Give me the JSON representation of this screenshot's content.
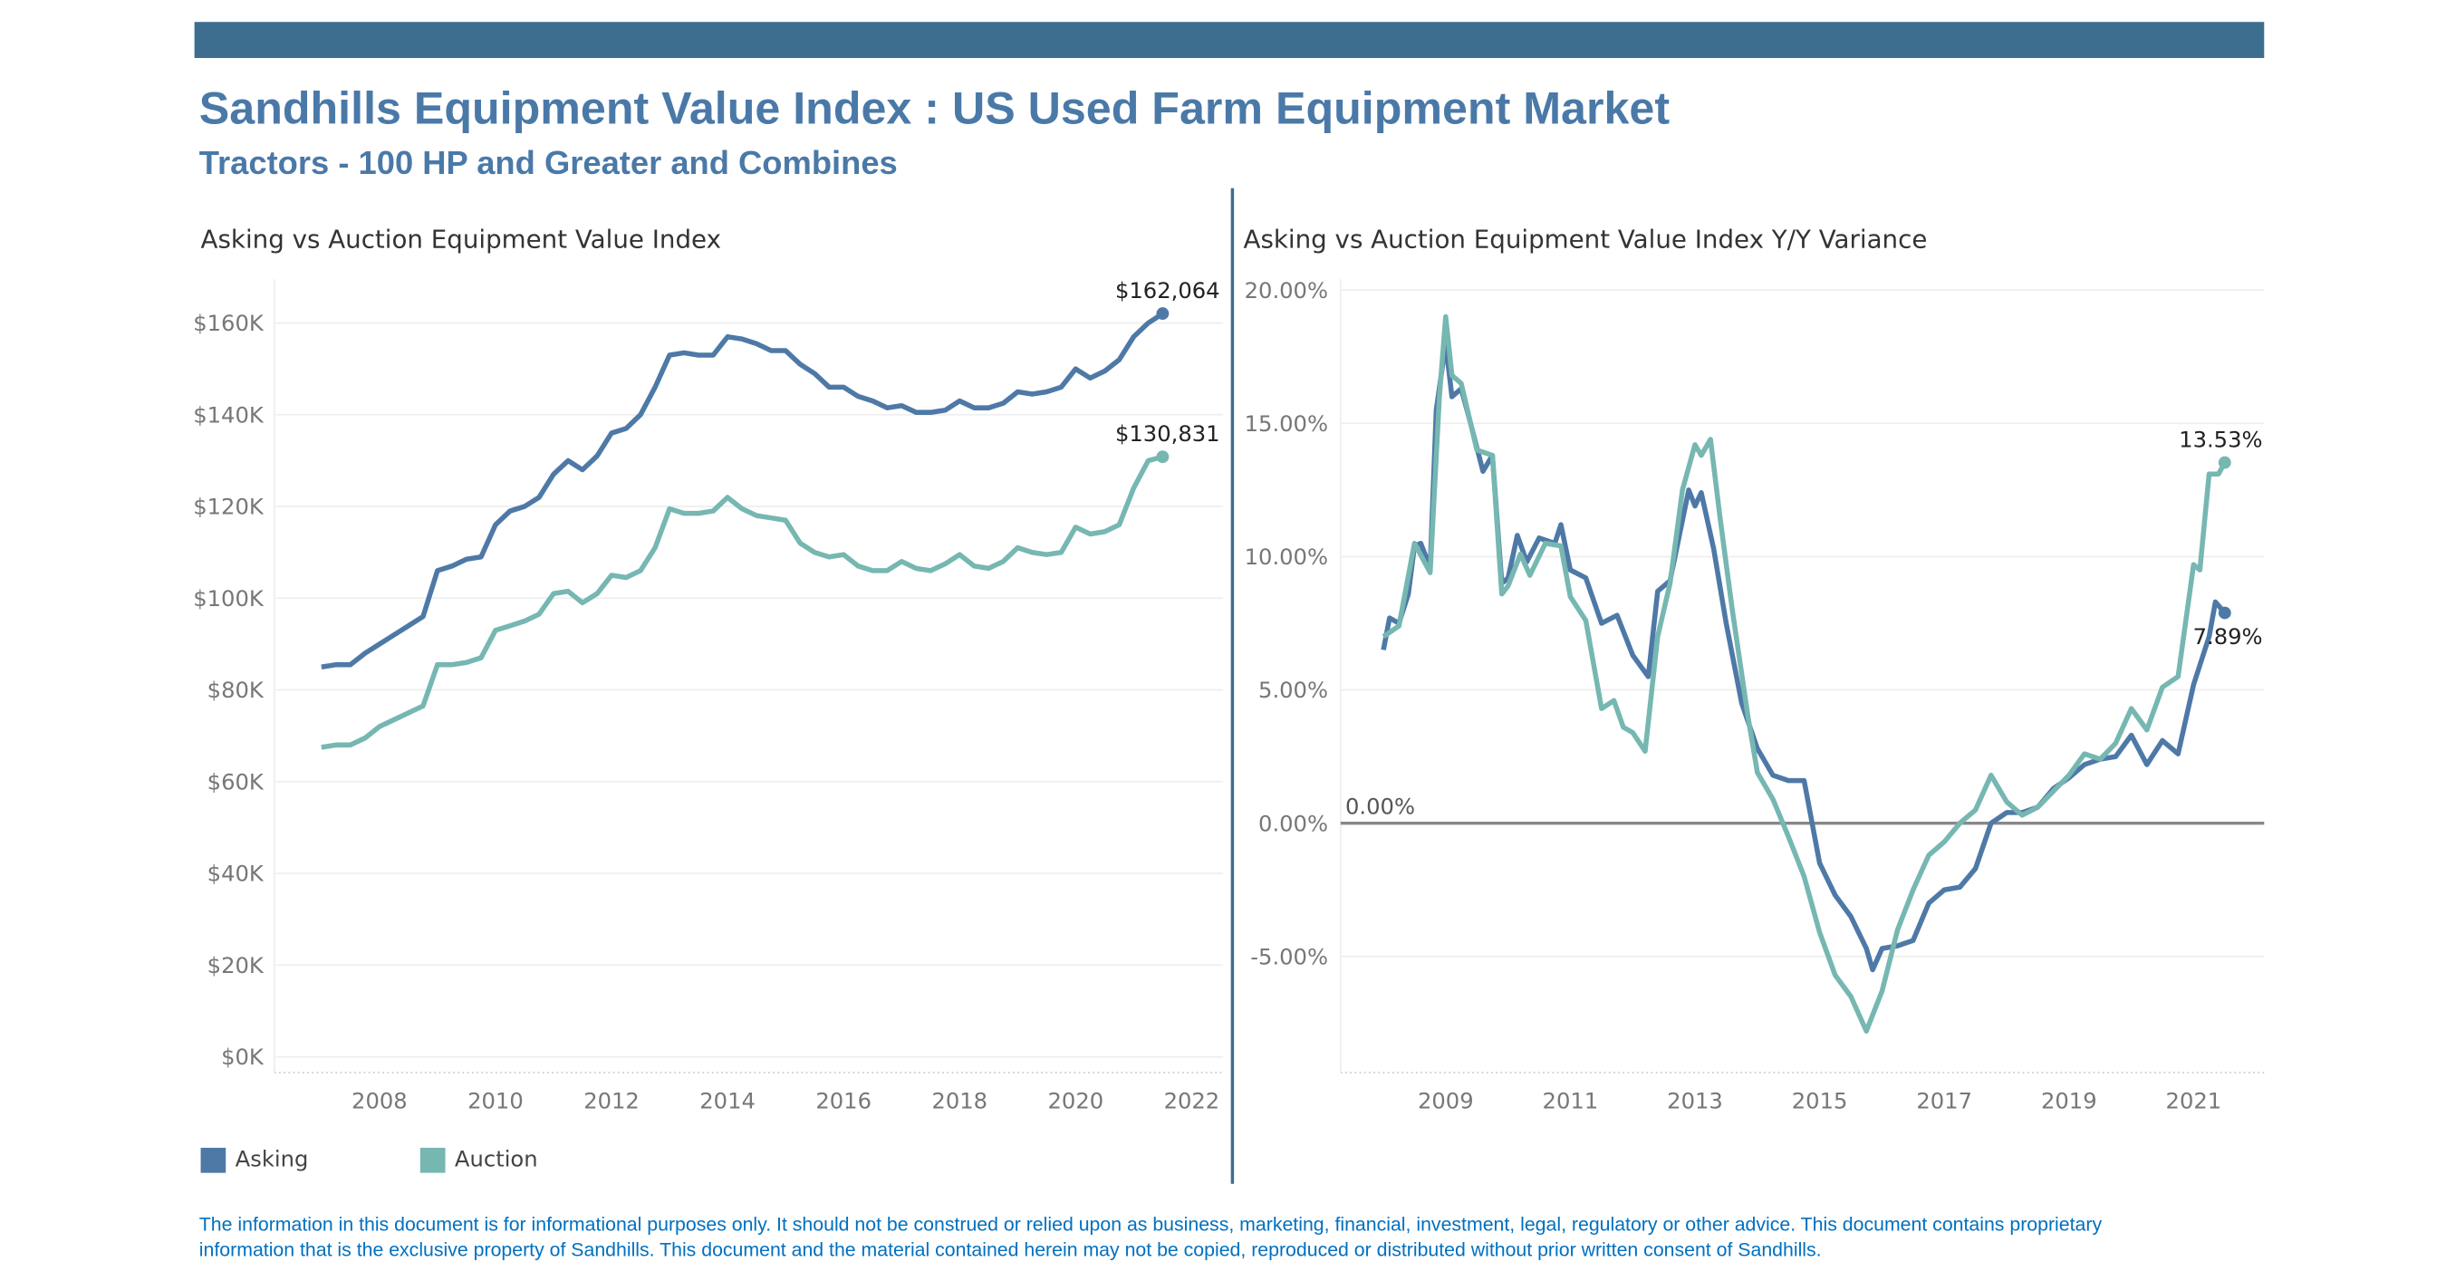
{
  "header": {
    "title": "Sandhills Equipment Value Index : US Used Farm Equipment Market",
    "subtitle": "Tractors - 100 HP and Greater and Combines"
  },
  "colors": {
    "banner": "#3d6e8f",
    "title": "#4a79a8",
    "asking": "#4e79a7",
    "auction": "#76b7b2",
    "footer": "#0070c0"
  },
  "legend": [
    {
      "label": "Asking",
      "color": "#4e79a7"
    },
    {
      "label": "Auction",
      "color": "#76b7b2"
    }
  ],
  "footer": {
    "line1": "The information in this document is for informational purposes only.  It should not be construed or relied upon as business, marketing, financial, investment, legal, regulatory or other advice. This document contains proprietary",
    "line2": "information that is the exclusive property of Sandhills. This document and the material contained herein may not be copied, reproduced or distributed without prior written consent of Sandhills."
  },
  "chart_data": [
    {
      "type": "line",
      "title": "Asking vs Auction Equipment Value Index",
      "xlabel": "",
      "ylabel": "",
      "xlim": [
        2006.6,
        2022.1
      ],
      "ylim": [
        0,
        170000
      ],
      "x_ticks": [
        "2008",
        "2010",
        "2012",
        "2014",
        "2016",
        "2018",
        "2020",
        "2022"
      ],
      "y_ticks": [
        "$0K",
        "$20K",
        "$40K",
        "$60K",
        "$80K",
        "$100K",
        "$120K",
        "$140K",
        "$160K"
      ],
      "grid": true,
      "legend_position": "bottom-left",
      "end_labels": [
        "$162,064",
        "$130,831"
      ],
      "x": [
        2007,
        2007.25,
        2007.5,
        2007.75,
        2008,
        2008.25,
        2008.5,
        2008.75,
        2009,
        2009.25,
        2009.5,
        2009.75,
        2010,
        2010.25,
        2010.5,
        2010.75,
        2011,
        2011.25,
        2011.5,
        2011.75,
        2012,
        2012.25,
        2012.5,
        2012.75,
        2013,
        2013.25,
        2013.5,
        2013.75,
        2014,
        2014.25,
        2014.5,
        2014.75,
        2015,
        2015.25,
        2015.5,
        2015.75,
        2016,
        2016.25,
        2016.5,
        2016.75,
        2017,
        2017.25,
        2017.5,
        2017.75,
        2018,
        2018.25,
        2018.5,
        2018.75,
        2019,
        2019.25,
        2019.5,
        2019.75,
        2020,
        2020.25,
        2020.5,
        2020.75,
        2021,
        2021.25,
        2021.5
      ],
      "series": [
        {
          "name": "Asking",
          "values": [
            85000,
            85500,
            85500,
            88000,
            90000,
            92000,
            94000,
            96000,
            106000,
            107000,
            108500,
            109000,
            116000,
            119000,
            120000,
            122000,
            127000,
            130000,
            128000,
            131000,
            136000,
            137000,
            140000,
            146000,
            153000,
            153500,
            153000,
            153000,
            157000,
            156500,
            155500,
            154000,
            154000,
            151000,
            149000,
            146000,
            146000,
            144000,
            143000,
            141500,
            142000,
            140500,
            140500,
            141000,
            143000,
            141500,
            141500,
            142500,
            145000,
            144500,
            145000,
            146000,
            150000,
            148000,
            149500,
            152000,
            157000,
            160000,
            162064
          ]
        },
        {
          "name": "Auction",
          "values": [
            67500,
            68000,
            68000,
            69500,
            72000,
            73500,
            75000,
            76500,
            85500,
            85500,
            86000,
            87000,
            93000,
            94000,
            95000,
            96500,
            101000,
            101500,
            99000,
            101000,
            105000,
            104500,
            106000,
            111000,
            119500,
            118500,
            118500,
            119000,
            122000,
            119500,
            118000,
            117500,
            117000,
            112000,
            110000,
            109000,
            109500,
            107000,
            106000,
            106000,
            108000,
            106500,
            106000,
            107500,
            109500,
            107000,
            106500,
            108000,
            111000,
            110000,
            109500,
            110000,
            115500,
            114000,
            114500,
            116000,
            124000,
            130000,
            130831
          ]
        }
      ]
    },
    {
      "type": "line",
      "title": "Asking vs Auction Equipment Value Index Y/Y Variance",
      "xlabel": "",
      "ylabel": "",
      "xlim": [
        2007.6,
        2022.1
      ],
      "ylim": [
        -9,
        20
      ],
      "x_ticks": [
        "2009",
        "2011",
        "2013",
        "2015",
        "2017",
        "2019",
        "2021"
      ],
      "y_ticks": [
        "-5.00%",
        "0.00%",
        "5.00%",
        "10.00%",
        "15.00%",
        "20.00%"
      ],
      "grid": true,
      "reference_line": {
        "value": 0,
        "label": "0.00%"
      },
      "end_labels": [
        "7.89%",
        "13.53%"
      ],
      "series": [
        {
          "name": "Asking",
          "x": [
            2008,
            2008.1,
            2008.25,
            2008.4,
            2008.5,
            2008.6,
            2008.75,
            2008.85,
            2009,
            2009.1,
            2009.25,
            2009.4,
            2009.6,
            2009.75,
            2009.9,
            2010,
            2010.15,
            2010.3,
            2010.5,
            2010.75,
            2010.85,
            2011,
            2011.25,
            2011.5,
            2011.75,
            2012,
            2012.25,
            2012.4,
            2012.6,
            2012.9,
            2013,
            2013.1,
            2013.3,
            2013.5,
            2013.75,
            2014,
            2014.25,
            2014.5,
            2014.75,
            2015,
            2015.25,
            2015.5,
            2015.75,
            2015.85,
            2016,
            2016.25,
            2016.5,
            2016.75,
            2017,
            2017.25,
            2017.5,
            2017.75,
            2018,
            2018.25,
            2018.5,
            2018.75,
            2019,
            2019.25,
            2019.5,
            2019.75,
            2020,
            2020.25,
            2020.5,
            2020.75,
            2021,
            2021.25,
            2021.35,
            2021.5
          ],
          "values": [
            6.5,
            7.7,
            7.5,
            8.6,
            10.4,
            10.5,
            9.6,
            15.5,
            18,
            16,
            16.3,
            15,
            13.2,
            13.8,
            9,
            9.2,
            10.8,
            9.8,
            10.7,
            10.5,
            11.2,
            9.5,
            9.2,
            7.5,
            7.8,
            6.3,
            5.5,
            8.7,
            9.1,
            12.5,
            11.9,
            12.4,
            10.3,
            7.5,
            4.5,
            2.8,
            1.8,
            1.6,
            1.6,
            -1.5,
            -2.7,
            -3.5,
            -4.7,
            -5.5,
            -4.7,
            -4.6,
            -4.4,
            -3,
            -2.5,
            -2.4,
            -1.7,
            0,
            0.4,
            0.4,
            0.6,
            1.3,
            1.7,
            2.2,
            2.4,
            2.5,
            3.3,
            2.2,
            3.1,
            2.6,
            5.2,
            7,
            8.3,
            7.89
          ]
        },
        {
          "name": "Auction",
          "x": [
            2008,
            2008.25,
            2008.5,
            2008.75,
            2008.9,
            2009,
            2009.1,
            2009.25,
            2009.5,
            2009.75,
            2009.9,
            2010,
            2010.2,
            2010.35,
            2010.6,
            2010.85,
            2011,
            2011.25,
            2011.5,
            2011.7,
            2011.85,
            2012,
            2012.2,
            2012.4,
            2012.6,
            2012.8,
            2013,
            2013.1,
            2013.25,
            2013.4,
            2013.6,
            2013.85,
            2014,
            2014.25,
            2014.5,
            2014.75,
            2015,
            2015.25,
            2015.5,
            2015.75,
            2016,
            2016.25,
            2016.5,
            2016.75,
            2017,
            2017.25,
            2017.5,
            2017.75,
            2018,
            2018.25,
            2018.5,
            2018.75,
            2019,
            2019.25,
            2019.5,
            2019.75,
            2020,
            2020.25,
            2020.5,
            2020.75,
            2021,
            2021.1,
            2021.25,
            2021.4,
            2021.5
          ],
          "values": [
            7,
            7.4,
            10.5,
            9.4,
            16,
            19,
            16.8,
            16.5,
            14,
            13.8,
            8.6,
            8.9,
            10.1,
            9.3,
            10.5,
            10.4,
            8.5,
            7.6,
            4.3,
            4.6,
            3.6,
            3.4,
            2.7,
            7,
            9,
            12.5,
            14.2,
            13.8,
            14.4,
            11.5,
            8,
            4,
            1.9,
            0.9,
            -0.5,
            -2,
            -4.1,
            -5.7,
            -6.5,
            -7.8,
            -6.3,
            -4,
            -2.5,
            -1.2,
            -0.7,
            0,
            0.5,
            1.8,
            0.8,
            0.3,
            0.6,
            1.2,
            1.8,
            2.6,
            2.4,
            3,
            4.3,
            3.5,
            5.1,
            5.5,
            9.7,
            9.5,
            13.1,
            13.1,
            13.53
          ]
        }
      ]
    }
  ]
}
